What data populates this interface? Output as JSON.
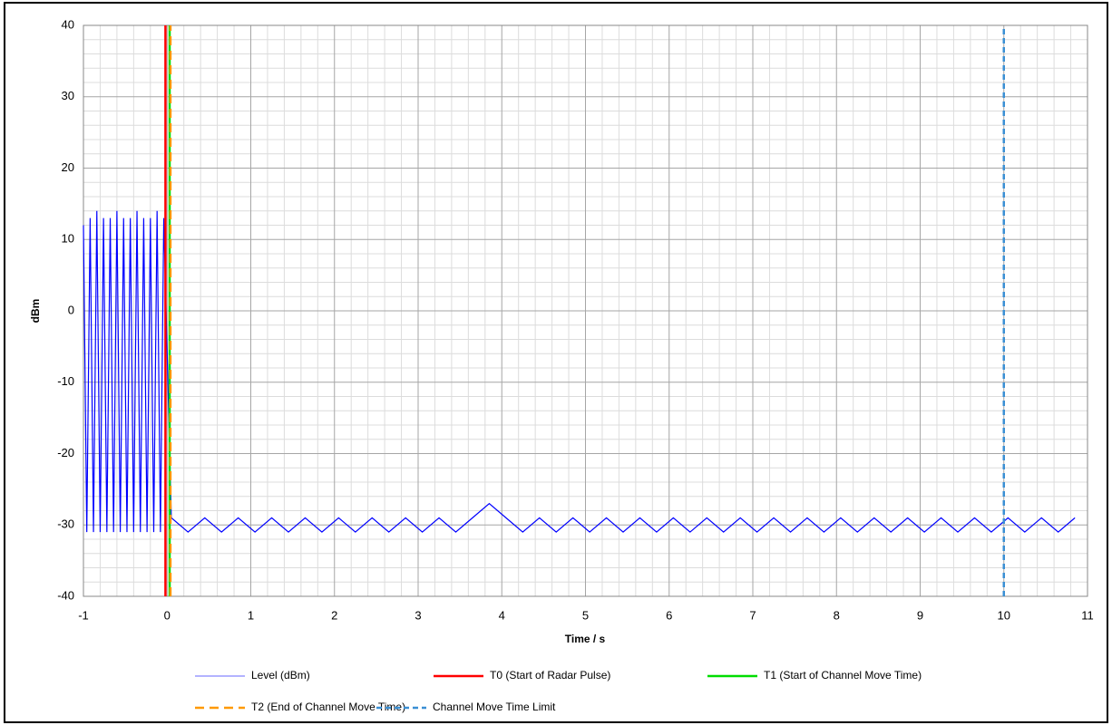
{
  "chart_data": {
    "type": "line",
    "xlabel": "Time / s",
    "ylabel": "dBm",
    "xlim": [
      -1,
      11
    ],
    "ylim": [
      -40,
      40
    ],
    "xticks": [
      -1,
      0,
      1,
      2,
      3,
      4,
      5,
      6,
      7,
      8,
      9,
      10,
      11
    ],
    "yticks": [
      -40,
      -30,
      -20,
      -10,
      0,
      10,
      20,
      30,
      40
    ],
    "grid": true,
    "minor_divisions": 5,
    "legend": "bottom",
    "series": [
      {
        "name": "Level (dBm)",
        "color": "#0000ff",
        "x": [
          -1,
          -0.96,
          -0.92,
          -0.88,
          -0.84,
          -0.8,
          -0.76,
          -0.72,
          -0.68,
          -0.64,
          -0.6,
          -0.56,
          -0.52,
          -0.48,
          -0.44,
          -0.4,
          -0.36,
          -0.32,
          -0.28,
          -0.24,
          -0.2,
          -0.16,
          -0.12,
          -0.08,
          -0.04,
          0.05,
          0.25,
          0.45,
          0.65,
          0.85,
          1.05,
          1.25,
          1.45,
          1.65,
          1.85,
          2.05,
          2.25,
          2.45,
          2.65,
          2.85,
          3.05,
          3.25,
          3.45,
          3.65,
          3.85,
          4.05,
          4.25,
          4.45,
          4.65,
          4.85,
          5.05,
          5.25,
          5.45,
          5.65,
          5.85,
          6.05,
          6.25,
          6.45,
          6.65,
          6.85,
          7.05,
          7.25,
          7.45,
          7.65,
          7.85,
          8.05,
          8.25,
          8.45,
          8.65,
          8.85,
          9.05,
          9.25,
          9.45,
          9.65,
          9.85,
          10.05,
          10.25,
          10.45,
          10.65,
          10.85
        ],
        "values": [
          12,
          -31,
          13,
          -31,
          14,
          -31,
          13,
          -31,
          13,
          -31,
          14,
          -31,
          13,
          -31,
          13,
          -31,
          14,
          -31,
          13,
          -31,
          13,
          -31,
          14,
          -31,
          13,
          -29,
          -31,
          -29,
          -31,
          -29,
          -31,
          -29,
          -31,
          -29,
          -31,
          -29,
          -31,
          -29,
          -31,
          -29,
          -31,
          -29,
          -31,
          -29,
          -27,
          -29,
          -31,
          -29,
          -31,
          -29,
          -31,
          -29,
          -31,
          -29,
          -31,
          -29,
          -31,
          -29,
          -31,
          -29,
          -31,
          -29,
          -31,
          -29,
          -31,
          -29,
          -31,
          -29,
          -31,
          -29,
          -31,
          -29,
          -31,
          -29,
          -31,
          -29,
          -31,
          -29,
          -31,
          -29
        ]
      },
      {
        "name": "T0 (Start of Radar Pulse)",
        "color": "#ff0000",
        "x": [
          -0.02,
          -0.02
        ],
        "values": [
          -40,
          40
        ]
      },
      {
        "name": "T1 (Start of Channel Move Time)",
        "color": "#00dd00",
        "x": [
          0.03,
          0.03
        ],
        "values": [
          -40,
          40
        ]
      },
      {
        "name": "T2 (End of Channel Move Time)",
        "color": "#ff9900",
        "dash": true,
        "x": [
          0.04,
          0.04
        ],
        "values": [
          -40,
          40
        ]
      },
      {
        "name": "Channel Move Time Limit",
        "color": "#3a8fd4",
        "dash": true,
        "x": [
          10,
          10
        ],
        "values": [
          -40,
          40
        ]
      }
    ]
  }
}
